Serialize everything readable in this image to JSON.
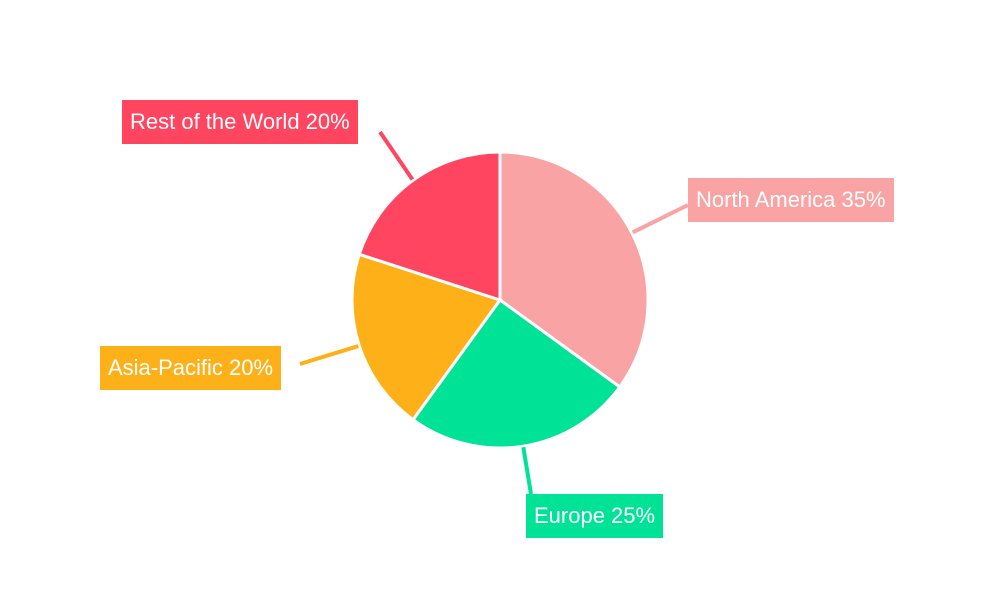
{
  "chart_data": {
    "type": "pie",
    "categories": [
      "North America",
      "Europe",
      "Asia-Pacific",
      "Rest of the World"
    ],
    "values": [
      35,
      25,
      20,
      20
    ],
    "labels": [
      "North America 35%",
      "Europe 25%",
      "Asia-Pacific 20%",
      "Rest of the World 20%"
    ],
    "colors": [
      "#f9a3a4",
      "#00e396",
      "#feb019",
      "#ff4560"
    ],
    "start": "top, clockwise",
    "legend": "none"
  }
}
